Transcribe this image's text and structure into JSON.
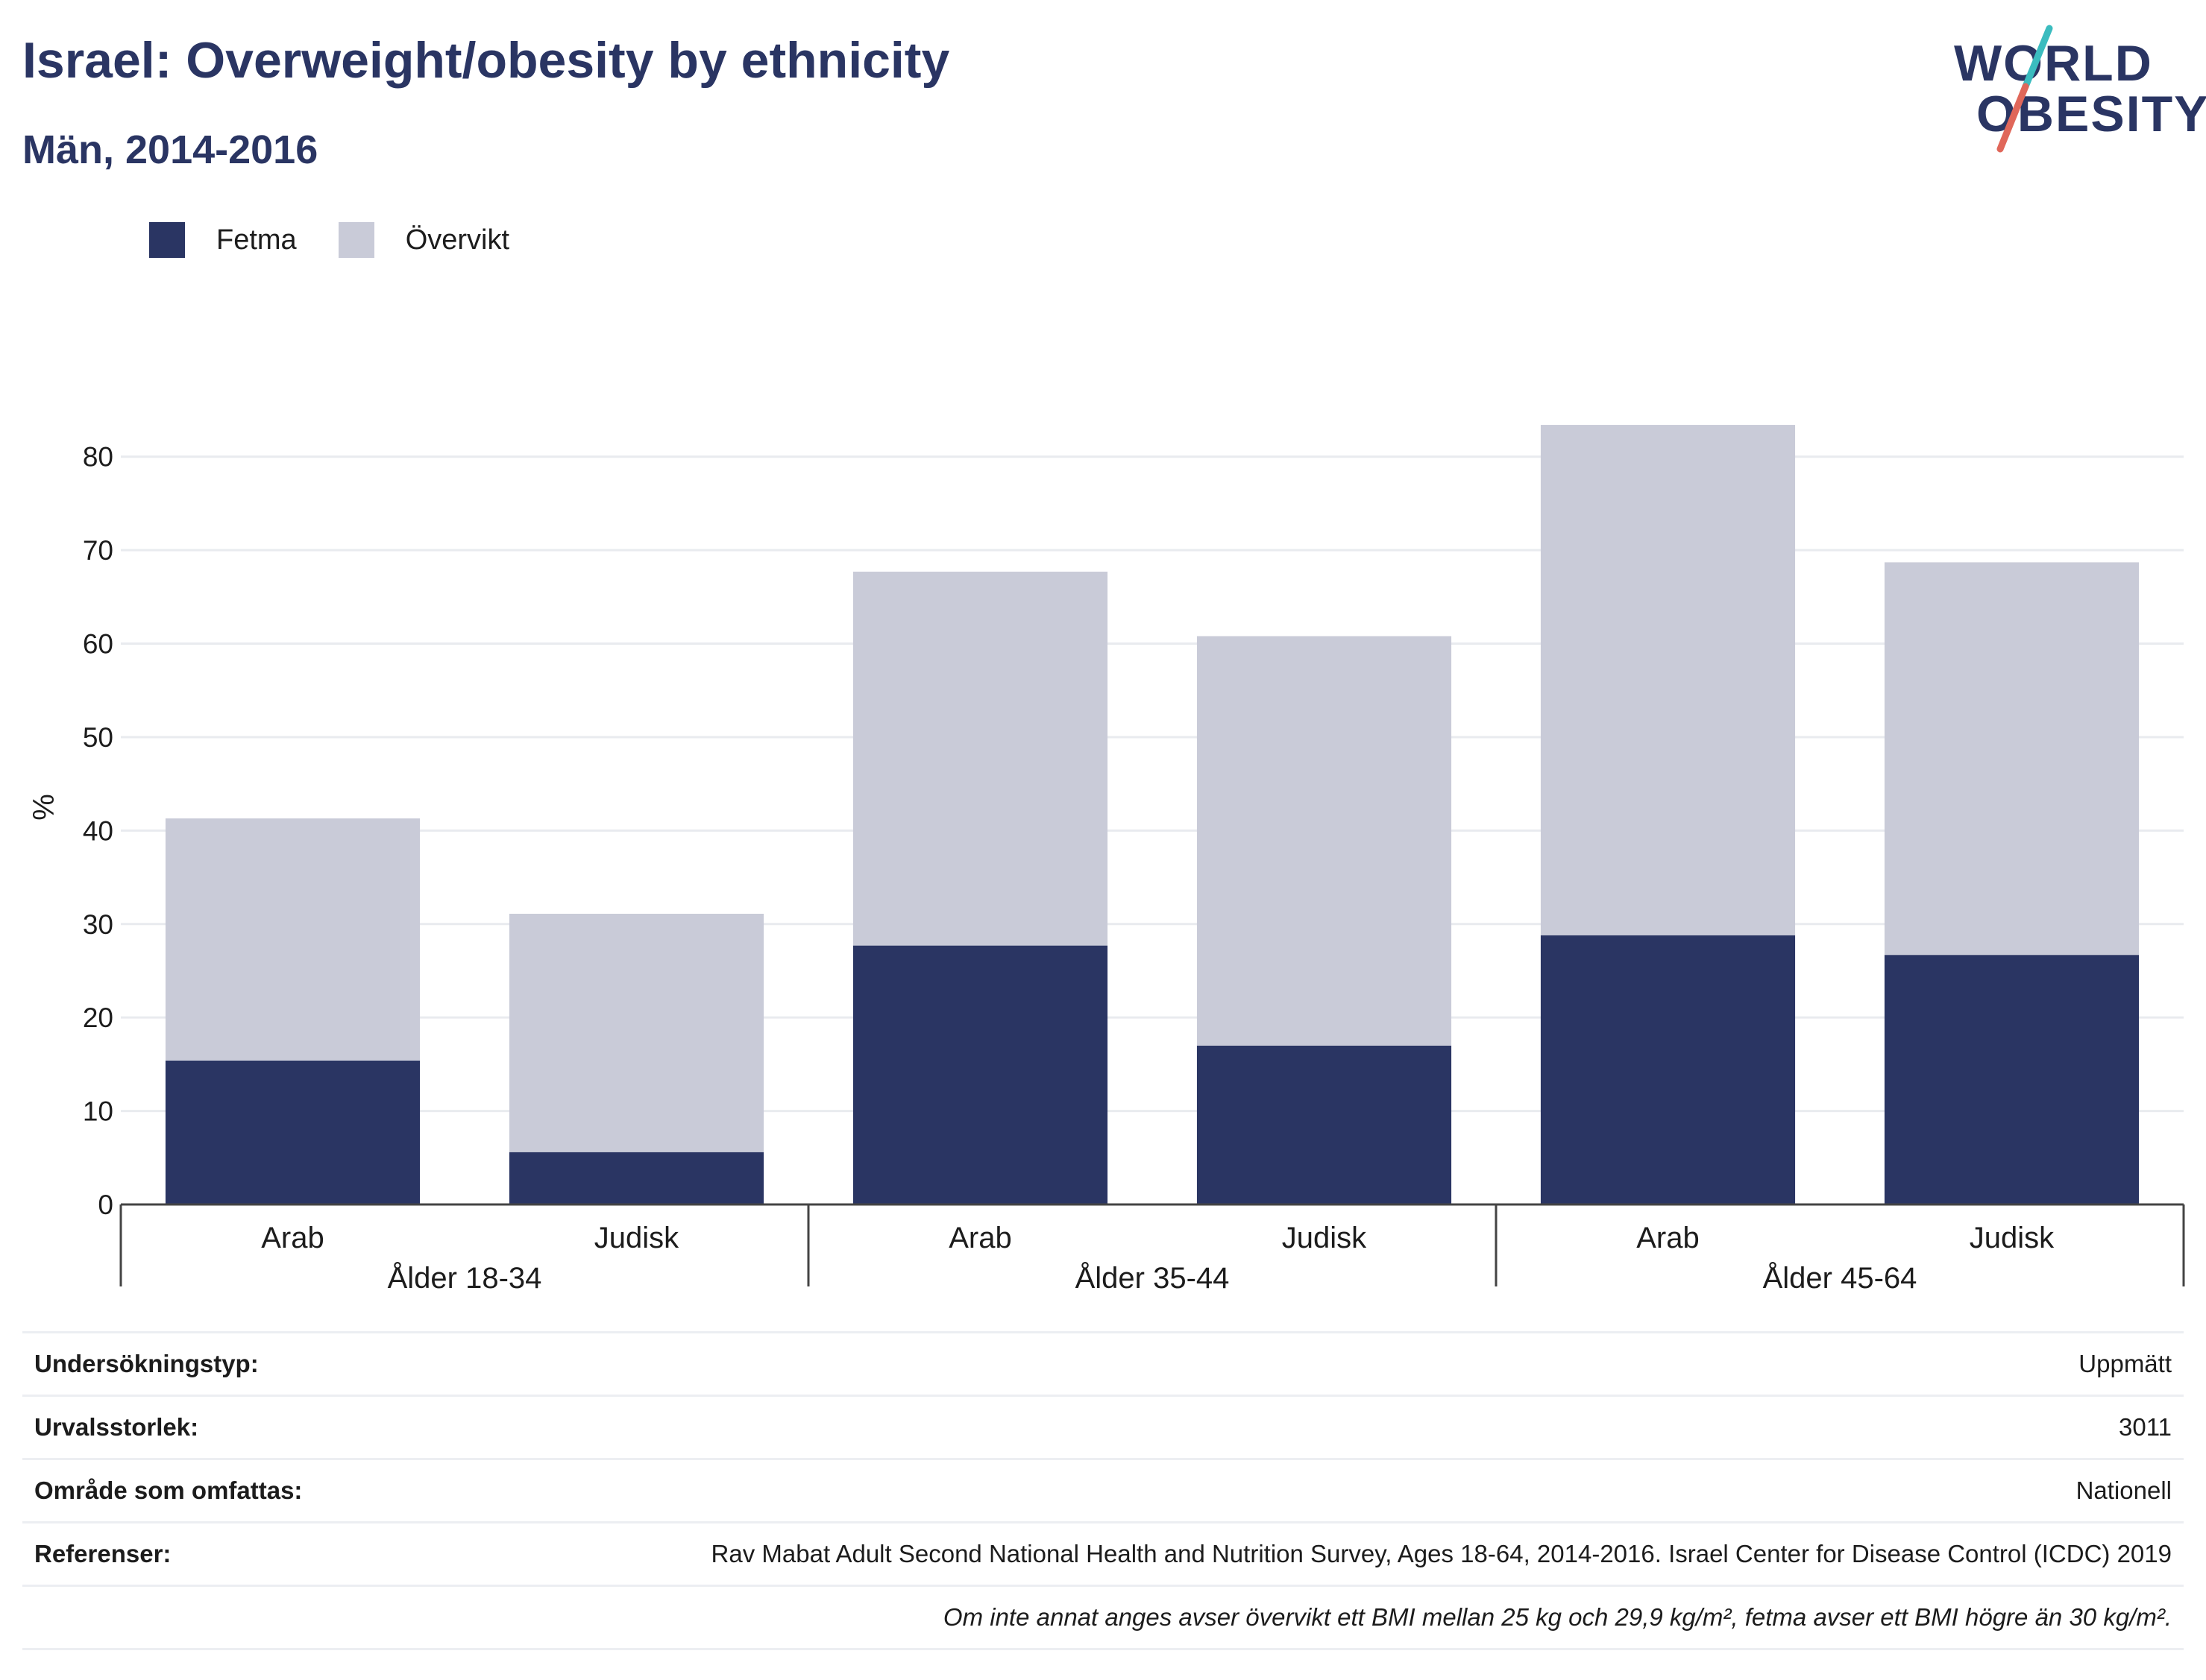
{
  "header": {
    "title": "Israel: Overweight/obesity by ethnicity",
    "subtitle": "Män, 2014-2016"
  },
  "logo": {
    "line1": "WORLD",
    "line2": "OBESITY",
    "colors": {
      "text": "#2a3563",
      "slash_top": "#3bbcbf",
      "slash_bottom": "#e0675a"
    }
  },
  "legend": {
    "items": [
      {
        "label": "Fetma",
        "color": "#2a3563"
      },
      {
        "label": "Övervikt",
        "color": "#c9cbd8"
      }
    ]
  },
  "chart_data": {
    "type": "bar",
    "stacked": true,
    "ylabel": "%",
    "xlabel": "",
    "ylim": [
      0,
      85
    ],
    "yticks": [
      0,
      10,
      20,
      30,
      40,
      50,
      60,
      70,
      80
    ],
    "grid": true,
    "legend_placement": "top-left",
    "groups": [
      "Ålder 18-34",
      "Ålder 35-44",
      "Ålder 45-64"
    ],
    "categories": [
      "Arab",
      "Judisk",
      "Arab",
      "Judisk",
      "Arab",
      "Judisk"
    ],
    "series": [
      {
        "name": "Fetma",
        "color": "#2a3563",
        "values": [
          15.4,
          5.6,
          27.7,
          17.0,
          28.8,
          26.7
        ]
      },
      {
        "name": "Övervikt",
        "color": "#c9cbd8",
        "values": [
          25.9,
          25.5,
          40.0,
          43.8,
          54.6,
          42.0
        ]
      }
    ]
  },
  "info": {
    "rows": [
      {
        "key": "Undersökningstyp:",
        "value": "Uppmätt"
      },
      {
        "key": "Urvalsstorlek:",
        "value": "3011"
      },
      {
        "key": "Område som omfattas:",
        "value": "Nationell"
      },
      {
        "key": "Referenser:",
        "value": "Rav Mabat Adult Second National Health and Nutrition Survey, Ages 18-64, 2014-2016. Israel Center for Disease Control (ICDC) 2019"
      }
    ],
    "footnote": "Om inte annat anges avser övervikt ett BMI mellan 25 kg och 29,9 kg/m², fetma avser ett BMI högre än 30 kg/m²."
  }
}
